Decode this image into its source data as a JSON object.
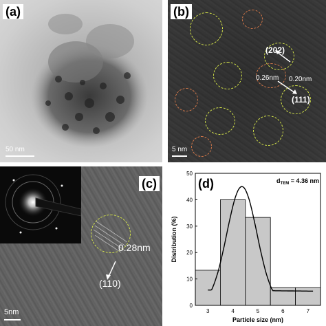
{
  "panels": {
    "a": {
      "label": "(a)",
      "scale": "50 nm"
    },
    "b": {
      "label": "(b)",
      "scale": "5 nm",
      "plane_1": "(202)",
      "plane_2": "(111)",
      "d_1": "0.26nm",
      "d_2": "0.20nm"
    },
    "c": {
      "label": "(c)",
      "scale": "5nm",
      "d_spacing": "0.28nm",
      "plane": "(110)"
    },
    "d": {
      "label": "(d)"
    }
  },
  "colors": {
    "fit_line": "#000000",
    "bar_fill": "#c8c8c8",
    "yellow_circle": "#d8e84a",
    "orange_circle": "#d97a4a"
  },
  "chart_data": {
    "type": "bar",
    "categories": [
      "3",
      "4",
      "5",
      "6",
      "7"
    ],
    "values": [
      13.3,
      40.0,
      33.3,
      6.7,
      6.7
    ],
    "xlabel": "Particle size (nm)",
    "ylabel": "Distribution (%)",
    "ylim": [
      0,
      50
    ],
    "yticks": [
      0,
      10,
      20,
      30,
      40,
      50
    ],
    "annotation": "d",
    "annotation_sub": "TEM",
    "annotation_value": " = 4.36 nm",
    "fit_curve": {
      "type": "gaussian",
      "mean": 4.36,
      "peak": 45
    }
  }
}
